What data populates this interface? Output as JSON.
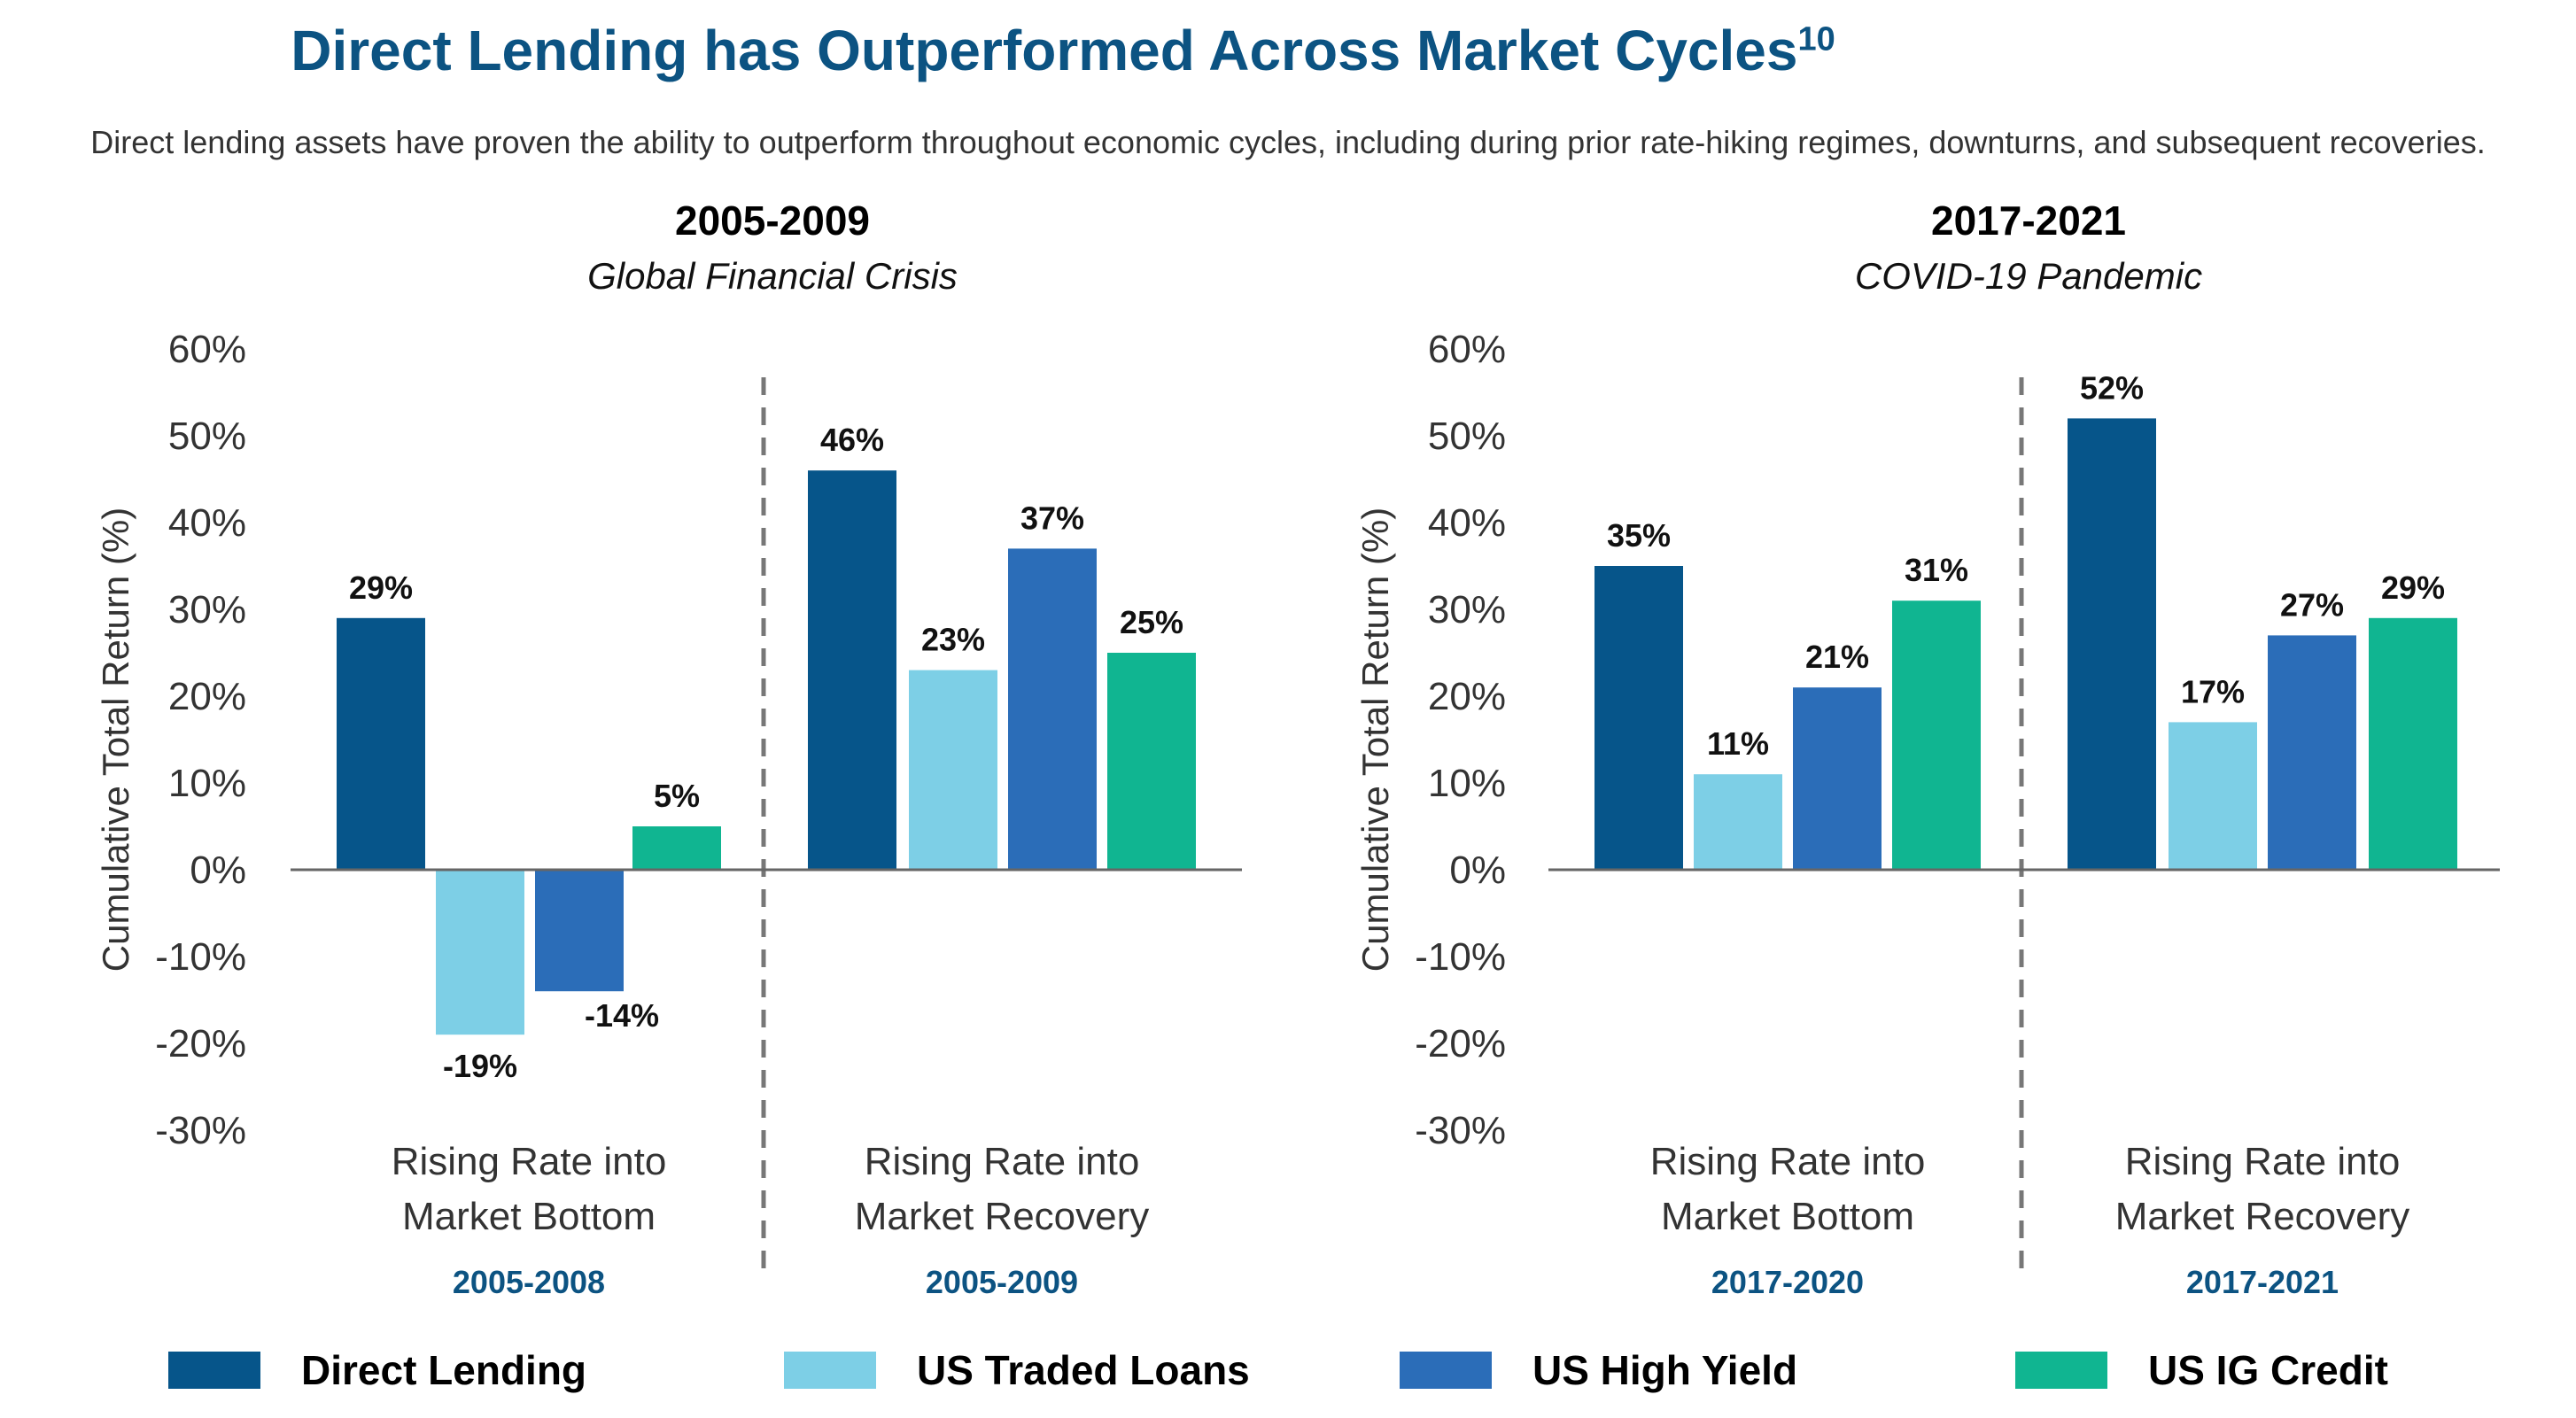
{
  "title": "Direct Lending has Outperformed Across Market Cycles",
  "title_sup": "10",
  "subtitle": "Direct lending assets have proven the ability to outperform throughout economic cycles, including during prior rate-hiking regimes, downturns, and subsequent recoveries.",
  "colors": {
    "direct_lending": "#06558a",
    "us_traded_loans": "#7dcfe6",
    "us_high_yield": "#2b6db8",
    "us_ig_credit": "#10b591",
    "period_label": "#0c5382"
  },
  "legend": [
    {
      "label": "Direct Lending",
      "color": "#06558a"
    },
    {
      "label": "US Traded Loans",
      "color": "#7dcfe6"
    },
    {
      "label": "US High Yield",
      "color": "#2b6db8"
    },
    {
      "label": "US IG Credit",
      "color": "#10b591"
    }
  ],
  "chart_data": [
    {
      "type": "bar",
      "title": "2005-2009",
      "subtitle": "Global Financial Crisis",
      "ylabel": "Cumulative Total Return (%)",
      "ylim": [
        -30,
        60
      ],
      "yticks": [
        "60%",
        "50%",
        "40%",
        "30%",
        "20%",
        "10%",
        "0%",
        "-10%",
        "-20%",
        "-30%"
      ],
      "categories": [
        {
          "line1": "Rising Rate into",
          "line2": "Market Bottom",
          "period": "2005-2008"
        },
        {
          "line1": "Rising Rate into",
          "line2": "Market Recovery",
          "period": "2005-2009"
        }
      ],
      "series": [
        {
          "name": "Direct Lending",
          "values": [
            29,
            46
          ],
          "labels": [
            "29%",
            "46%"
          ]
        },
        {
          "name": "US Traded Loans",
          "values": [
            -19,
            23
          ],
          "labels": [
            "-19%",
            "23%"
          ]
        },
        {
          "name": "US High Yield",
          "values": [
            -14,
            37
          ],
          "labels": [
            "-14%",
            "37%"
          ]
        },
        {
          "name": "US IG Credit",
          "values": [
            5,
            25
          ],
          "labels": [
            "5%",
            "25%"
          ]
        }
      ]
    },
    {
      "type": "bar",
      "title": "2017-2021",
      "subtitle": "COVID-19 Pandemic",
      "ylabel": "Cumulative Total Return (%)",
      "ylim": [
        -30,
        60
      ],
      "yticks": [
        "60%",
        "50%",
        "40%",
        "30%",
        "20%",
        "10%",
        "0%",
        "-10%",
        "-20%",
        "-30%"
      ],
      "categories": [
        {
          "line1": "Rising Rate into",
          "line2": "Market Bottom",
          "period": "2017-2020"
        },
        {
          "line1": "Rising Rate into",
          "line2": "Market Recovery",
          "period": "2017-2021"
        }
      ],
      "series": [
        {
          "name": "Direct Lending",
          "values": [
            35,
            52
          ],
          "labels": [
            "35%",
            "52%"
          ]
        },
        {
          "name": "US Traded Loans",
          "values": [
            11,
            17
          ],
          "labels": [
            "11%",
            "17%"
          ]
        },
        {
          "name": "US High Yield",
          "values": [
            21,
            27
          ],
          "labels": [
            "21%",
            "27%"
          ]
        },
        {
          "name": "US IG Credit",
          "values": [
            31,
            29
          ],
          "labels": [
            "31%",
            "29%"
          ]
        }
      ]
    }
  ]
}
